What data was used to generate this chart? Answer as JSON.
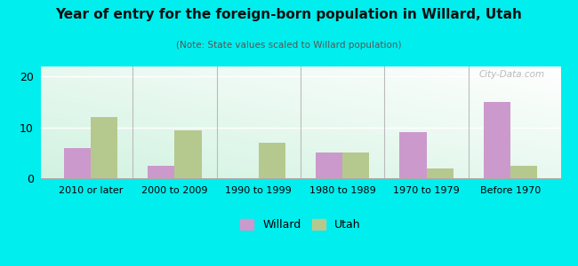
{
  "title": "Year of entry for the foreign-born population in Willard, Utah",
  "subtitle": "(Note: State values scaled to Willard population)",
  "categories": [
    "2010 or later",
    "2000 to 2009",
    "1990 to 1999",
    "1980 to 1989",
    "1970 to 1979",
    "Before 1970"
  ],
  "willard": [
    6,
    2.5,
    0,
    5,
    9,
    15
  ],
  "utah": [
    12,
    9.5,
    7,
    5,
    2,
    2.5
  ],
  "willard_color": "#cc99cc",
  "utah_color": "#b5c98e",
  "background_color": "#00eeee",
  "ylim": [
    0,
    22
  ],
  "yticks": [
    0,
    10,
    20
  ],
  "bar_width": 0.32,
  "legend_labels": [
    "Willard",
    "Utah"
  ],
  "watermark": "City-Data.com"
}
